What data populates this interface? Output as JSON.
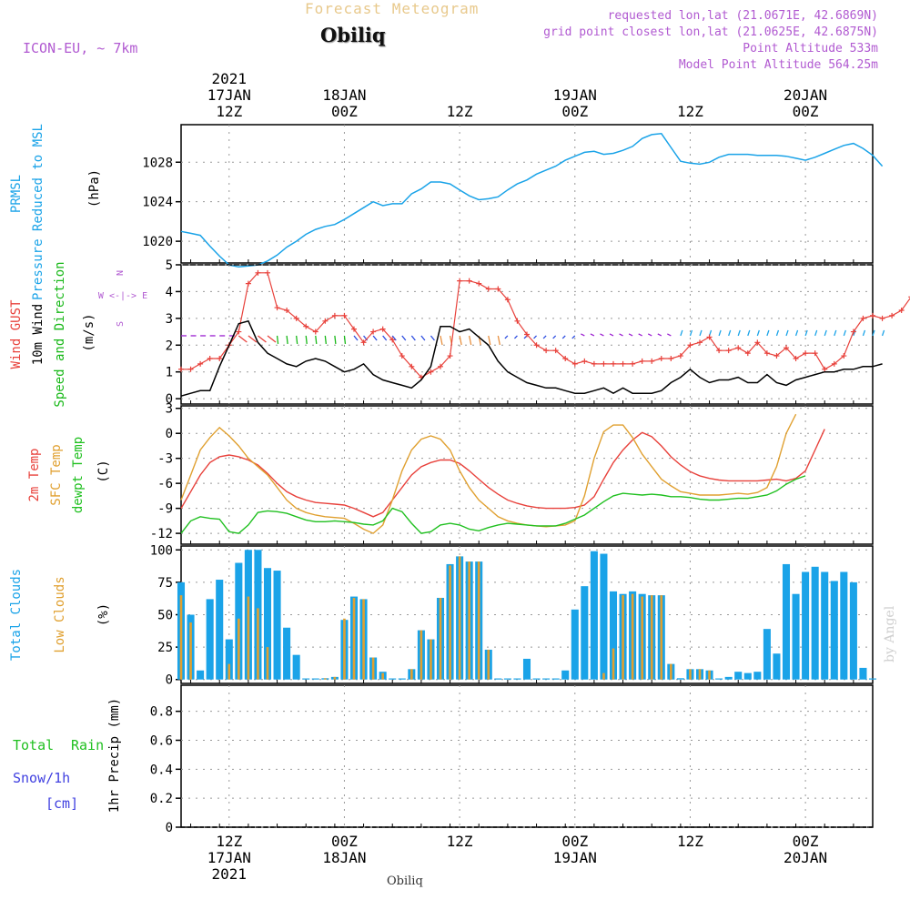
{
  "header": {
    "title": "Forecast Meteogram",
    "location": "Obiliq",
    "model": "ICON-EU, ~ 7km",
    "requested": "requested lon,lat (21.0671E, 42.6869N)",
    "grid_point": "grid point closest lon,lat (21.0625E, 42.6875N)",
    "point_altitude": "Point Altitude 533m",
    "model_altitude": "Model Point Altitude 564.25m"
  },
  "footer": {
    "location": "Obiliq",
    "watermark": "by Angel"
  },
  "time_axis": {
    "top_labels": [
      {
        "t": 0,
        "lines": [
          "2021",
          "17JAN",
          "12Z"
        ]
      },
      {
        "t": 12,
        "lines": [
          "18JAN",
          "00Z"
        ]
      },
      {
        "t": 24,
        "lines": [
          "12Z"
        ]
      },
      {
        "t": 36,
        "lines": [
          "19JAN",
          "00Z"
        ]
      },
      {
        "t": 48,
        "lines": [
          "12Z"
        ]
      },
      {
        "t": 60,
        "lines": [
          "20JAN",
          "00Z"
        ]
      }
    ],
    "bottom_labels": [
      {
        "t": 0,
        "lines": [
          "12Z",
          "17JAN",
          "2021"
        ]
      },
      {
        "t": 12,
        "lines": [
          "00Z",
          "18JAN"
        ]
      },
      {
        "t": 24,
        "lines": [
          "12Z"
        ]
      },
      {
        "t": 36,
        "lines": [
          "00Z",
          "19JAN"
        ]
      },
      {
        "t": 48,
        "lines": [
          "12Z"
        ]
      },
      {
        "t": 60,
        "lines": [
          "00Z",
          "20JAN"
        ]
      }
    ]
  },
  "colors": {
    "pressure": "#1aa3e8",
    "gust": "#e8413b",
    "wind": "#000000",
    "dir": "#18b818",
    "temp": "#e8413b",
    "sfc": "#e0a030",
    "dew": "#20c020",
    "clouds": "#1aa3e8",
    "low": "#e0a030",
    "rain": "#20c020",
    "snow": "#4040e0",
    "meta": "#b15ad1"
  },
  "chart_data": [
    {
      "type": "line",
      "panel": "pressure",
      "ylabel": [
        "PRMSL",
        "Pressure Reduced to MSL"
      ],
      "unit": "(hPa)",
      "yticks": [
        1020,
        1024,
        1028
      ],
      "ylim": [
        1017.8,
        1031.8
      ],
      "x_start": -5,
      "x_step": 1,
      "series": [
        {
          "values": [
            1021.0,
            1020.8,
            1020.6,
            1019.5,
            1018.5,
            1017.6,
            1017.4,
            1017.5,
            1017.6,
            1018.0,
            1018.6,
            1019.4,
            1020.0,
            1020.7,
            1021.2,
            1021.5,
            1021.7,
            1022.2,
            1022.8,
            1023.4,
            1024.0,
            1023.6,
            1023.8,
            1023.8,
            1024.8,
            1025.3,
            1026.0,
            1026.0,
            1025.8,
            1025.2,
            1024.6,
            1024.2,
            1024.3,
            1024.5,
            1025.2,
            1025.8,
            1026.2,
            1026.8,
            1027.2,
            1027.6,
            1028.2,
            1028.6,
            1029.0,
            1029.1,
            1028.8,
            1028.9,
            1029.2,
            1029.6,
            1030.4,
            1030.8,
            1030.9,
            1029.5,
            1028.1,
            1027.9,
            1027.8,
            1028.0,
            1028.5,
            1028.8,
            1028.8,
            1028.8,
            1028.7,
            1028.7,
            1028.7,
            1028.6,
            1028.4,
            1028.2,
            1028.5,
            1028.9,
            1029.3,
            1029.7,
            1029.9,
            1029.4,
            1028.7,
            1027.6
          ]
        }
      ]
    },
    {
      "type": "line",
      "panel": "wind",
      "ylabel": [
        "Wind GUST",
        "10m Wind",
        "Speed and Direction"
      ],
      "unit": "(m/s)",
      "compass": [
        "N",
        "W <-|-> E",
        "S"
      ],
      "yticks": [
        0,
        1,
        2,
        3,
        4,
        5
      ],
      "ylim": [
        -0.2,
        5
      ],
      "x_start": -5,
      "x_step": 1,
      "series": [
        {
          "name": "Wind GUST",
          "marker": "+",
          "values": [
            1.1,
            1.1,
            1.3,
            1.5,
            1.5,
            2.0,
            2.5,
            4.3,
            4.7,
            4.7,
            3.4,
            3.3,
            3.0,
            2.7,
            2.5,
            2.9,
            3.1,
            3.1,
            2.6,
            2.1,
            2.5,
            2.6,
            2.2,
            1.6,
            1.2,
            0.8,
            1.0,
            1.2,
            1.6,
            4.4,
            4.4,
            4.3,
            4.1,
            4.1,
            3.7,
            2.9,
            2.4,
            2.0,
            1.8,
            1.8,
            1.5,
            1.3,
            1.4,
            1.3,
            1.3,
            1.3,
            1.3,
            1.3,
            1.4,
            1.4,
            1.5,
            1.5,
            1.6,
            2.0,
            2.1,
            2.3,
            1.8,
            1.8,
            1.9,
            1.7,
            2.1,
            1.7,
            1.6,
            1.9,
            1.5,
            1.7,
            1.7,
            1.1,
            1.3,
            1.6,
            2.5,
            3.0,
            3.1,
            3.0,
            3.1,
            3.3,
            3.8,
            3.8
          ]
        },
        {
          "name": "10m Wind",
          "values": [
            0.1,
            0.2,
            0.3,
            0.3,
            1.2,
            2.0,
            2.8,
            2.9,
            2.1,
            1.7,
            1.5,
            1.3,
            1.2,
            1.4,
            1.5,
            1.4,
            1.2,
            1.0,
            1.1,
            1.3,
            0.9,
            0.7,
            0.6,
            0.5,
            0.4,
            0.7,
            1.2,
            2.7,
            2.7,
            2.5,
            2.6,
            2.3,
            2.0,
            1.4,
            1.0,
            0.8,
            0.6,
            0.5,
            0.4,
            0.4,
            0.3,
            0.2,
            0.2,
            0.3,
            0.4,
            0.2,
            0.4,
            0.2,
            0.2,
            0.2,
            0.3,
            0.6,
            0.8,
            1.1,
            0.8,
            0.6,
            0.7,
            0.7,
            0.8,
            0.6,
            0.6,
            0.9,
            0.6,
            0.5,
            0.7,
            0.8,
            0.9,
            1.0,
            1.0,
            1.1,
            1.1,
            1.2,
            1.2,
            1.3
          ]
        }
      ]
    },
    {
      "type": "line",
      "panel": "temperature",
      "ylabel": [
        "2m Temp",
        "SFC Temp",
        "dewpt Temp"
      ],
      "unit": "(C)",
      "yticks": [
        -12,
        -9,
        -6,
        -3,
        0,
        3
      ],
      "ylim": [
        -13.3,
        3.3
      ],
      "x_start": -5,
      "x_step": 1,
      "series": [
        {
          "name": "2m Temp",
          "values": [
            -9.0,
            -7.0,
            -5.0,
            -3.5,
            -2.8,
            -2.6,
            -2.8,
            -3.2,
            -3.8,
            -4.8,
            -6.0,
            -7.0,
            -7.6,
            -8.0,
            -8.3,
            -8.4,
            -8.5,
            -8.6,
            -9.0,
            -9.5,
            -10.0,
            -9.5,
            -8.0,
            -6.5,
            -5.0,
            -4.0,
            -3.5,
            -3.2,
            -3.2,
            -3.6,
            -4.5,
            -5.5,
            -6.5,
            -7.3,
            -8.0,
            -8.4,
            -8.7,
            -8.9,
            -9.0,
            -9.0,
            -9.0,
            -8.9,
            -8.6,
            -7.6,
            -5.5,
            -3.5,
            -2.0,
            -0.8,
            0.1,
            -0.4,
            -1.5,
            -2.8,
            -3.8,
            -4.6,
            -5.1,
            -5.4,
            -5.6,
            -5.7,
            -5.7,
            -5.7,
            -5.7,
            -5.6,
            -5.5,
            -5.7,
            -5.4,
            -4.5,
            -2.0,
            0.5
          ]
        },
        {
          "name": "SFC Temp",
          "values": [
            -8.0,
            -5.0,
            -2.0,
            -0.5,
            0.7,
            -0.3,
            -1.5,
            -3.0,
            -4.0,
            -5.0,
            -6.5,
            -8.0,
            -9.0,
            -9.5,
            -9.8,
            -10.0,
            -10.1,
            -10.2,
            -10.8,
            -11.5,
            -12.0,
            -11.0,
            -8.0,
            -4.5,
            -2.0,
            -0.7,
            -0.3,
            -0.7,
            -2.0,
            -4.5,
            -6.5,
            -8.0,
            -9.0,
            -10.0,
            -10.5,
            -10.8,
            -11.0,
            -11.1,
            -11.2,
            -11.1,
            -11.0,
            -10.5,
            -7.5,
            -3.0,
            0.2,
            1.0,
            1.0,
            -0.5,
            -2.5,
            -4.0,
            -5.5,
            -6.3,
            -7.0,
            -7.2,
            -7.4,
            -7.4,
            -7.4,
            -7.3,
            -7.2,
            -7.3,
            -7.1,
            -6.5,
            -4.0,
            0.0,
            2.3
          ]
        },
        {
          "name": "dewpt Temp",
          "values": [
            -12.0,
            -10.5,
            -10.0,
            -10.2,
            -10.3,
            -11.8,
            -12.0,
            -11.0,
            -9.5,
            -9.3,
            -9.4,
            -9.6,
            -10.0,
            -10.4,
            -10.6,
            -10.6,
            -10.5,
            -10.6,
            -10.7,
            -10.9,
            -11.0,
            -10.5,
            -9.0,
            -9.4,
            -10.8,
            -12.0,
            -11.8,
            -11.0,
            -10.8,
            -11.0,
            -11.5,
            -11.7,
            -11.3,
            -11.0,
            -10.8,
            -10.9,
            -11.0,
            -11.1,
            -11.1,
            -11.1,
            -10.8,
            -10.3,
            -9.8,
            -9.0,
            -8.2,
            -7.5,
            -7.2,
            -7.3,
            -7.4,
            -7.3,
            -7.4,
            -7.6,
            -7.6,
            -7.7,
            -7.9,
            -8.0,
            -8.0,
            -7.9,
            -7.8,
            -7.8,
            -7.6,
            -7.4,
            -6.9,
            -6.1,
            -5.5,
            -5.1
          ]
        }
      ]
    },
    {
      "type": "bar",
      "panel": "clouds",
      "ylabel": [
        "Total Clouds",
        "Low Clouds"
      ],
      "unit": "(%)",
      "yticks": [
        0,
        25,
        50,
        75,
        100
      ],
      "ylim": [
        -3,
        103
      ],
      "x_start": -5,
      "x_step": 1,
      "series": [
        {
          "name": "Total Clouds",
          "values": [
            75,
            50,
            7,
            62,
            77,
            31,
            90,
            100,
            100,
            86,
            84,
            40,
            19,
            0,
            0,
            1,
            2,
            46,
            64,
            62,
            17,
            6,
            0,
            0,
            8,
            38,
            31,
            63,
            89,
            95,
            91,
            91,
            23,
            0,
            0,
            0,
            16,
            0,
            0,
            0,
            7,
            54,
            72,
            99,
            97,
            68,
            66,
            68,
            66,
            65,
            65,
            12,
            1,
            8,
            8,
            7,
            0,
            2,
            6,
            5,
            6,
            39,
            20,
            89,
            66,
            83,
            87,
            83,
            76,
            83,
            75,
            9,
            0,
            0,
            0,
            0
          ]
        },
        {
          "name": "Low Clouds",
          "values": [
            65,
            44,
            0,
            0,
            0,
            12,
            47,
            64,
            55,
            25,
            0,
            0,
            0,
            0,
            0,
            1,
            2,
            47,
            63,
            62,
            17,
            5,
            0,
            0,
            8,
            38,
            31,
            63,
            88,
            95,
            91,
            91,
            23,
            0,
            0,
            0,
            0,
            0,
            0,
            0,
            0,
            0,
            0,
            0,
            5,
            24,
            65,
            66,
            64,
            65,
            65,
            12,
            0,
            8,
            8,
            7,
            0,
            0,
            0,
            0,
            0,
            0,
            0,
            0,
            0,
            0,
            0,
            0,
            0,
            0,
            0,
            0,
            0,
            0,
            0,
            0
          ]
        }
      ]
    },
    {
      "type": "bar",
      "panel": "precip",
      "ylabel": [
        "Total Rain",
        "Snow/1h",
        "[cm]"
      ],
      "axis_label": "1hr Precip (mm)",
      "yticks": [
        0,
        0.2,
        0.4,
        0.6,
        0.8
      ],
      "ylim": [
        0,
        0.98
      ],
      "series": [
        {
          "name": "Total Rain",
          "values": []
        },
        {
          "name": "Snow/1h",
          "values": []
        }
      ]
    }
  ]
}
